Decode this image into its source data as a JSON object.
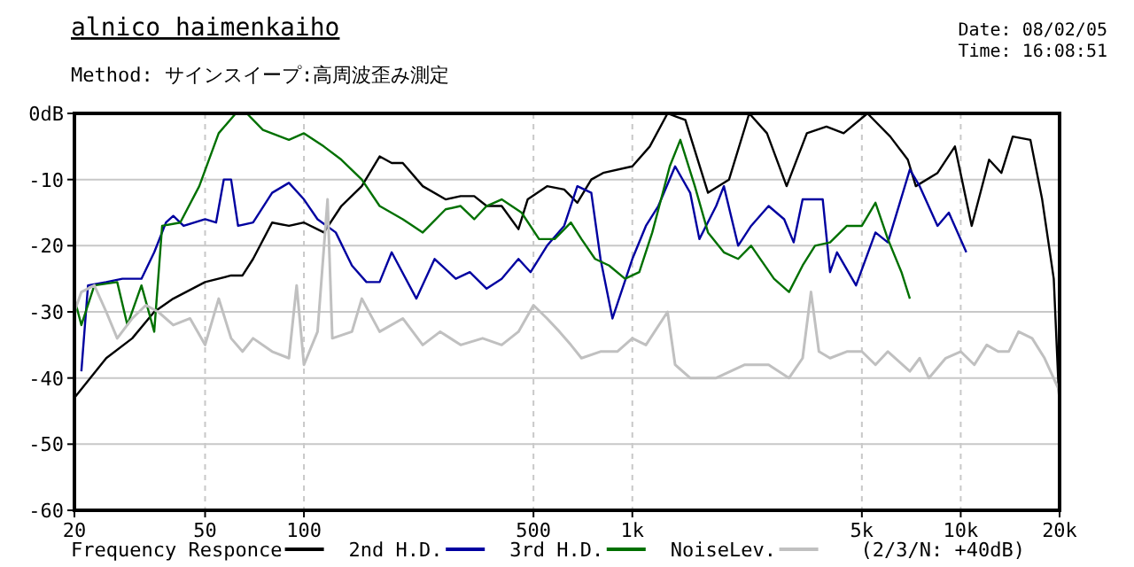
{
  "chart_data": {
    "type": "line",
    "title": "alnico haimenkaiho",
    "annotations": [
      "Method:  サインスイープ:高周波歪み測定",
      "Date: 08/02/05",
      "Time: 16:08:51",
      "(2/3/N: +40dB)"
    ],
    "log": "x",
    "xlim": [
      20,
      20000
    ],
    "xticks": [
      20,
      50,
      100,
      500,
      {
        "value": 1000,
        "label": "1k"
      },
      {
        "value": 5000,
        "label": "5k"
      },
      {
        "value": 10000,
        "label": "10k"
      },
      {
        "value": 20000,
        "label": "20k"
      }
    ],
    "ylim": [
      -60,
      0
    ],
    "yticks": [
      {
        "value": 0,
        "label": "0dB"
      },
      -10,
      -20,
      -30,
      -40,
      -50,
      -60
    ],
    "grid": true,
    "legend": "bottom",
    "marker": "none",
    "line_style": "solid",
    "series": [
      {
        "name": "Frequency Responce",
        "color": "#000000",
        "x": [
          20,
          25,
          30,
          35,
          40,
          50,
          60,
          65,
          70,
          80,
          90,
          100,
          115,
          130,
          150,
          170,
          185,
          200,
          230,
          270,
          300,
          330,
          360,
          400,
          450,
          480,
          550,
          620,
          680,
          750,
          815,
          1000,
          1130,
          1280,
          1450,
          1700,
          1970,
          2270,
          2570,
          2950,
          3400,
          3900,
          4400,
          5200,
          6100,
          6900,
          7300,
          8500,
          9600,
          10800,
          12200,
          13300,
          14400,
          16300,
          17700,
          19200,
          20000
        ],
        "values": [
          -43,
          -37,
          -34,
          -30,
          -28,
          -25.5,
          -24.5,
          -24.5,
          -22,
          -16.5,
          -17,
          -16.5,
          -18,
          -14,
          -11,
          -6.5,
          -7.5,
          -7.5,
          -11,
          -13,
          -12.5,
          -12.5,
          -14,
          -14,
          -17.5,
          -13,
          -11,
          -11.5,
          -13.5,
          -10,
          -9,
          -8,
          -5,
          0,
          -1,
          -12,
          -10,
          0,
          -3,
          -11,
          -3,
          -2,
          -3,
          0,
          -3.5,
          -7,
          -11,
          -9,
          -5,
          -17,
          -7,
          -9,
          -3.5,
          -4,
          -13,
          -25,
          -45
        ]
      },
      {
        "name": "2nd H.D.",
        "color": "#0000a0",
        "x": [
          21,
          22,
          25,
          28,
          32,
          35,
          38,
          40,
          43,
          50,
          54,
          57,
          60,
          63,
          70,
          80,
          90,
          100,
          110,
          125,
          140,
          155,
          170,
          185,
          220,
          250,
          290,
          320,
          360,
          400,
          450,
          490,
          550,
          620,
          680,
          750,
          800,
          870,
          1000,
          1100,
          1200,
          1350,
          1500,
          1600,
          1800,
          1900,
          2100,
          2300,
          2600,
          2900,
          3100,
          3300,
          3800,
          4000,
          4200,
          4800,
          5500,
          6000,
          7000,
          7500,
          8500,
          9200,
          10400
        ],
        "values": [
          -39,
          -26,
          -25.5,
          -25,
          -25,
          -21,
          -16.5,
          -15.5,
          -17,
          -16,
          -16.5,
          -10,
          -10,
          -17,
          -16.5,
          -12,
          -10.5,
          -13,
          -16,
          -18,
          -23,
          -25.5,
          -25.5,
          -21,
          -28,
          -22,
          -25,
          -24,
          -26.5,
          -25,
          -22,
          -24,
          -20,
          -17,
          -11,
          -12,
          -22,
          -31,
          -22,
          -17,
          -14,
          -8,
          -12,
          -19,
          -14,
          -11,
          -20,
          -17,
          -14,
          -16,
          -19.5,
          -13,
          -13,
          -24,
          -21,
          -26,
          -18,
          -19.5,
          -8.5,
          -11,
          -17,
          -15,
          -21
        ]
      },
      {
        "name": "3rd H.D.",
        "color": "#007000",
        "x": [
          20,
          21,
          23,
          27,
          29,
          32,
          35,
          37,
          42,
          48,
          55,
          62,
          67,
          75,
          90,
          100,
          115,
          130,
          150,
          170,
          200,
          230,
          270,
          300,
          330,
          360,
          400,
          460,
          520,
          580,
          650,
          700,
          770,
          850,
          950,
          1050,
          1150,
          1300,
          1400,
          1550,
          1700,
          1900,
          2100,
          2300,
          2700,
          3000,
          3300,
          3600,
          4000,
          4500,
          5000,
          5500,
          6000,
          6600,
          7000
        ],
        "values": [
          -28,
          -32,
          -26,
          -25.5,
          -32,
          -26,
          -33,
          -17,
          -16.5,
          -11,
          -3,
          0,
          0,
          -2.5,
          -4,
          -3,
          -5,
          -7,
          -10,
          -14,
          -16,
          -18,
          -14.5,
          -14,
          -16,
          -14,
          -13,
          -15,
          -19,
          -19,
          -16.5,
          -19,
          -22,
          -23,
          -25,
          -24,
          -18,
          -8,
          -4,
          -11,
          -18,
          -21,
          -22,
          -20,
          -25,
          -27,
          -23,
          -20,
          -19.5,
          -17,
          -17,
          -13.5,
          -19,
          -24,
          -28
        ]
      },
      {
        "name": "NoiseLev.",
        "color": "#c0c0c0",
        "x": [
          20,
          21,
          23,
          25,
          27,
          30,
          33,
          36,
          40,
          45,
          50,
          55,
          60,
          65,
          70,
          80,
          90,
          95,
          100,
          110,
          118,
          122,
          140,
          150,
          170,
          200,
          230,
          260,
          300,
          350,
          400,
          450,
          500,
          550,
          600,
          650,
          700,
          800,
          900,
          1000,
          1100,
          1280,
          1350,
          1500,
          1800,
          2200,
          2600,
          3000,
          3300,
          3500,
          3700,
          4000,
          4500,
          5000,
          5500,
          6000,
          7000,
          7500,
          8000,
          9000,
          10000,
          11000,
          12000,
          13000,
          14000,
          15000,
          16500,
          18000,
          20000
        ],
        "values": [
          -30,
          -27,
          -26,
          -30,
          -34,
          -31,
          -29,
          -30,
          -32,
          -31,
          -35,
          -28,
          -34,
          -36,
          -34,
          -36,
          -37,
          -26,
          -38,
          -33,
          -13,
          -34,
          -33,
          -28,
          -33,
          -31,
          -35,
          -33,
          -35,
          -34,
          -35,
          -33,
          -29,
          -31,
          -33,
          -35,
          -37,
          -36,
          -36,
          -34,
          -35,
          -30,
          -38,
          -40,
          -40,
          -38,
          -38,
          -40,
          -37,
          -27,
          -36,
          -37,
          -36,
          -36,
          -38,
          -36,
          -39,
          -37,
          -40,
          -37,
          -36,
          -38,
          -35,
          -36,
          -36,
          -33,
          -34,
          -37,
          -42
        ]
      }
    ]
  }
}
